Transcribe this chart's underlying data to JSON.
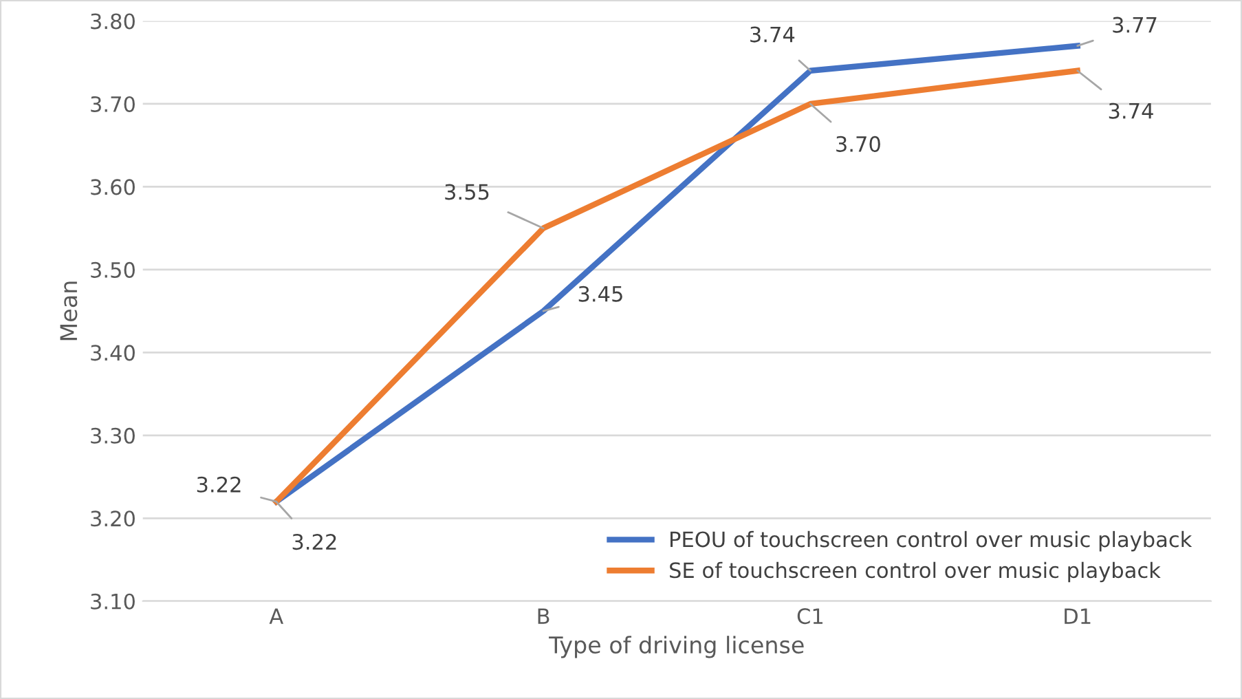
{
  "chart_data": {
    "type": "line",
    "xlabel": "Type of driving license",
    "ylabel": "Mean",
    "categories": [
      "A",
      "B",
      "C1",
      "D1"
    ],
    "series": [
      {
        "name": "PEOU of touchscreen control over music playback",
        "color": "#4472c4",
        "values": [
          3.22,
          3.45,
          3.74,
          3.77
        ],
        "value_labels": [
          "3.22",
          "3.45",
          "3.74",
          "3.77"
        ]
      },
      {
        "name": "SE of touchscreen control over music playback",
        "color": "#ed7d31",
        "values": [
          3.22,
          3.55,
          3.7,
          3.74
        ],
        "value_labels": [
          "3.22",
          "3.55",
          "3.70",
          "3.74"
        ]
      }
    ],
    "ylim": [
      3.1,
      3.8
    ],
    "yticks": [
      {
        "value": 3.1,
        "label": "3.10"
      },
      {
        "value": 3.2,
        "label": "3.20"
      },
      {
        "value": 3.3,
        "label": "3.30"
      },
      {
        "value": 3.4,
        "label": "3.40"
      },
      {
        "value": 3.5,
        "label": "3.50"
      },
      {
        "value": 3.6,
        "label": "3.60"
      },
      {
        "value": 3.7,
        "label": "3.70"
      },
      {
        "value": 3.8,
        "label": "3.80"
      }
    ],
    "grid": "y",
    "legend": "bottom right",
    "marker": "none",
    "line_style": "solid"
  }
}
